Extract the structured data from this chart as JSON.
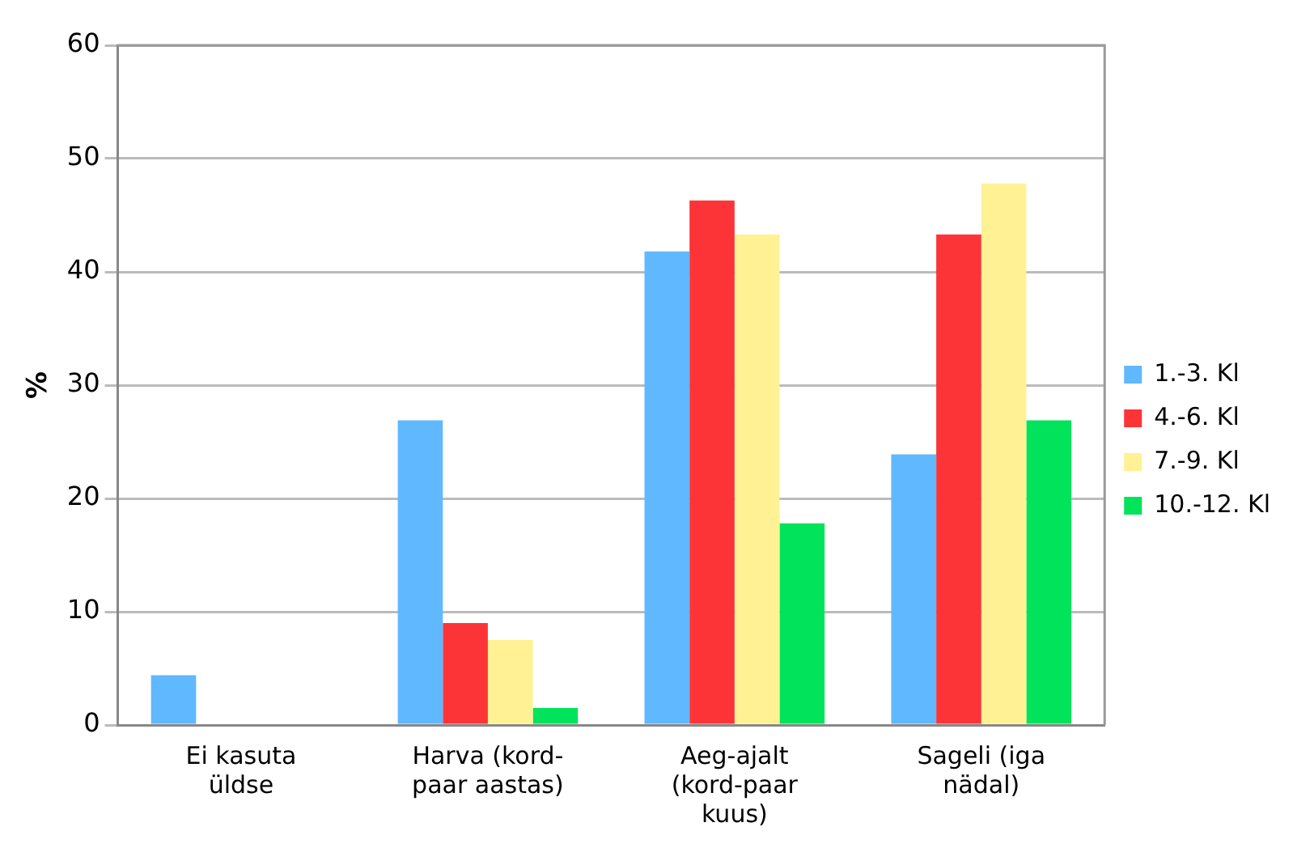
{
  "chart_data": {
    "type": "bar",
    "ylabel": "%",
    "categories": [
      "Ei kasuta\nüldse",
      "Harva (kord-\npaar aastas)",
      "Aeg-ajalt\n(kord-paar\nkuus)",
      "Sageli (iga\nnädal)"
    ],
    "series": [
      {
        "name": "1.-3. Kl",
        "color": "#60b8ff",
        "values": [
          4.4,
          26.9,
          41.8,
          23.9
        ]
      },
      {
        "name": "4.-6. Kl",
        "color": "#fc3437",
        "values": [
          0,
          9,
          46.3,
          43.3
        ]
      },
      {
        "name": "7.-9. Kl",
        "color": "#fff194",
        "values": [
          0,
          7.5,
          43.3,
          47.8
        ]
      },
      {
        "name": "10.-12. Kl",
        "color": "#00e35b",
        "values": [
          0,
          1.5,
          17.8,
          26.9
        ]
      }
    ],
    "ylim": [
      0,
      60
    ],
    "yticks": [
      0,
      10,
      20,
      30,
      40,
      50,
      60
    ],
    "grid": "y",
    "legend": "right"
  }
}
